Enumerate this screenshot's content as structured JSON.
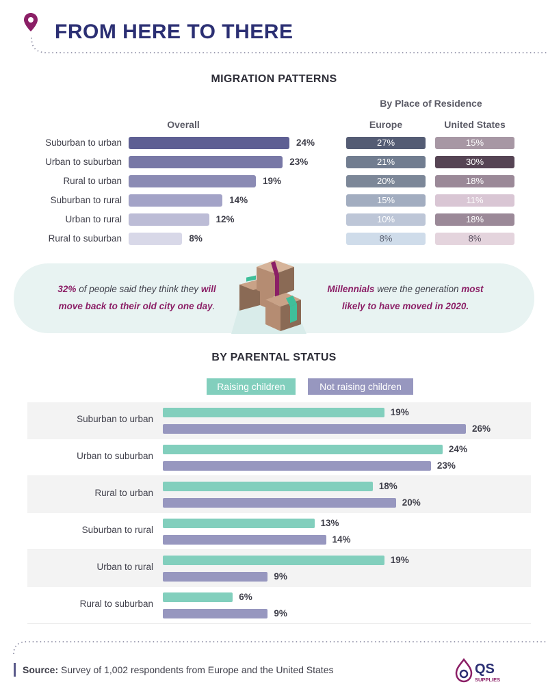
{
  "header": {
    "title": "FROM HERE TO THERE"
  },
  "colors": {
    "navy": "#2b2f73",
    "accent": "#8b1f66",
    "teal": "#82cfbd",
    "purple": "#9797bf",
    "callout_bg": "#e8f3f2"
  },
  "chart_data": [
    {
      "type": "bar",
      "orientation": "horizontal",
      "title": "MIGRATION PATTERNS",
      "subtitle": "Overall",
      "categories": [
        "Suburban to urban",
        "Urban to suburban",
        "Rural to urban",
        "Suburban to rural",
        "Urban to rural",
        "Rural to suburban"
      ],
      "values": [
        24,
        23,
        19,
        14,
        12,
        8
      ],
      "value_labels": [
        "24%",
        "23%",
        "19%",
        "14%",
        "12%",
        "8%"
      ],
      "bar_colors": [
        "#5e5f93",
        "#7878a6",
        "#8b8bb4",
        "#a3a3c7",
        "#bcbcd6",
        "#d8d8e8"
      ],
      "unit": "%",
      "xlim": [
        0,
        24
      ]
    },
    {
      "type": "table",
      "title": "By Place of Residence",
      "columns": [
        "Europe",
        "United States"
      ],
      "rows": [
        "Suburban to urban",
        "Urban to suburban",
        "Rural to urban",
        "Suburban to rural",
        "Urban to rural",
        "Rural to suburban"
      ],
      "europe": [
        "27%",
        "21%",
        "20%",
        "15%",
        "10%",
        "8%"
      ],
      "united_states": [
        "15%",
        "30%",
        "18%",
        "11%",
        "18%",
        "8%"
      ],
      "europe_colors": [
        "#545c74",
        "#717d90",
        "#7c8798",
        "#a2adc0",
        "#bdc6d7",
        "#cfdcea"
      ],
      "us_colors": [
        "#a797a4",
        "#564454",
        "#9b8998",
        "#d9c6d4",
        "#9b8998",
        "#e4d4dd"
      ],
      "europe_text_colors": [
        "#ffffff",
        "#ffffff",
        "#ffffff",
        "#ffffff",
        "#ffffff",
        "#5a6070"
      ],
      "us_text_colors": [
        "#ffffff",
        "#ffffff",
        "#ffffff",
        "#ffffff",
        "#ffffff",
        "#5a5060"
      ]
    },
    {
      "type": "bar",
      "orientation": "horizontal",
      "title": "BY PARENTAL STATUS",
      "categories": [
        "Suburban to urban",
        "Urban to suburban",
        "Rural to urban",
        "Suburban to rural",
        "Urban to rural",
        "Rural to suburban"
      ],
      "series": [
        {
          "name": "Raising children",
          "values": [
            19,
            24,
            18,
            13,
            19,
            6
          ],
          "labels": [
            "19%",
            "24%",
            "18%",
            "13%",
            "19%",
            "6%"
          ],
          "color": "#82cfbd"
        },
        {
          "name": "Not raising children",
          "values": [
            26,
            23,
            20,
            14,
            9,
            9
          ],
          "labels": [
            "26%",
            "23%",
            "20%",
            "14%",
            "9%",
            "9%"
          ],
          "color": "#9797bf"
        }
      ],
      "unit": "%",
      "xlim": [
        0,
        26
      ]
    }
  ],
  "callout": {
    "left": {
      "highlight": "32%",
      "text1": " of people said they think they ",
      "highlight2": "will",
      "line2_hl": "move back to their old city one day",
      "line2_end": "."
    },
    "right": {
      "highlight": "Millennials",
      "text1": " were the generation ",
      "highlight2": "most",
      "line2": "likely to have moved in 2020."
    }
  },
  "footer": {
    "source_label": "Source:",
    "source_text": " Survey of 1,002 respondents from Europe and the United States",
    "logo_text": "QS",
    "logo_sub": "SUPPLIES"
  }
}
